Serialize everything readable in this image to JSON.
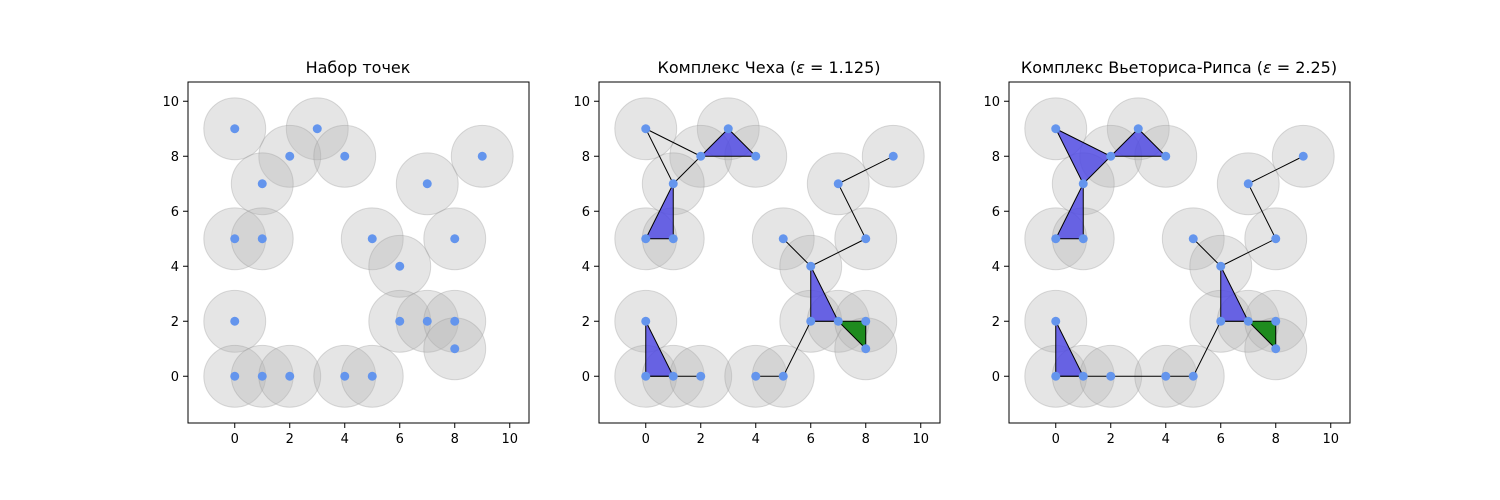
{
  "colors": {
    "point": "#6495ED",
    "disk": "#B4B4B4",
    "triangle": "#4B45E6",
    "tetrahedron": "#1E8B1E",
    "edge": "#000000"
  },
  "chart_data": [
    {
      "type": "scatter",
      "title": "Набор точек",
      "xlim": [
        -1.7,
        10.7
      ],
      "ylim": [
        -1.7,
        10.7
      ],
      "xticks": [
        "0",
        "2",
        "4",
        "6",
        "8",
        "10"
      ],
      "yticks": [
        "0",
        "2",
        "4",
        "6",
        "8",
        "10"
      ],
      "points": [
        [
          0,
          9
        ],
        [
          3,
          9
        ],
        [
          2,
          8
        ],
        [
          4,
          8
        ],
        [
          9,
          8
        ],
        [
          1,
          7
        ],
        [
          7,
          7
        ],
        [
          0,
          5
        ],
        [
          1,
          5
        ],
        [
          5,
          5
        ],
        [
          8,
          5
        ],
        [
          6,
          4
        ],
        [
          0,
          2
        ],
        [
          6,
          2
        ],
        [
          7,
          2
        ],
        [
          8,
          2
        ],
        [
          8,
          1
        ],
        [
          0,
          0
        ],
        [
          1,
          0
        ],
        [
          2,
          0
        ],
        [
          4,
          0
        ],
        [
          5,
          0
        ]
      ],
      "disk_radius": 1.125,
      "edges": [],
      "triangles": [],
      "tetrahedra": []
    },
    {
      "type": "scatter",
      "title_prefix": "Комплекс Чеха (",
      "title_symbol": "ε",
      "title_suffix": " = 1.125)",
      "xlim": [
        -1.7,
        10.7
      ],
      "ylim": [
        -1.7,
        10.7
      ],
      "xticks": [
        "0",
        "2",
        "4",
        "6",
        "8",
        "10"
      ],
      "yticks": [
        "0",
        "2",
        "4",
        "6",
        "8",
        "10"
      ],
      "points": [
        [
          0,
          9
        ],
        [
          3,
          9
        ],
        [
          2,
          8
        ],
        [
          4,
          8
        ],
        [
          9,
          8
        ],
        [
          1,
          7
        ],
        [
          7,
          7
        ],
        [
          0,
          5
        ],
        [
          1,
          5
        ],
        [
          5,
          5
        ],
        [
          8,
          5
        ],
        [
          6,
          4
        ],
        [
          0,
          2
        ],
        [
          6,
          2
        ],
        [
          7,
          2
        ],
        [
          8,
          2
        ],
        [
          8,
          1
        ],
        [
          0,
          0
        ],
        [
          1,
          0
        ],
        [
          2,
          0
        ],
        [
          4,
          0
        ],
        [
          5,
          0
        ]
      ],
      "disk_radius": 1.125,
      "edges": [
        [
          [
            0,
            9
          ],
          [
            2,
            8
          ]
        ],
        [
          [
            0,
            9
          ],
          [
            1,
            7
          ]
        ],
        [
          [
            1,
            7
          ],
          [
            2,
            8
          ]
        ],
        [
          [
            7,
            7
          ],
          [
            9,
            8
          ]
        ],
        [
          [
            7,
            7
          ],
          [
            8,
            5
          ]
        ],
        [
          [
            6,
            4
          ],
          [
            5,
            5
          ]
        ],
        [
          [
            6,
            4
          ],
          [
            8,
            5
          ]
        ],
        [
          [
            6,
            2
          ],
          [
            5,
            0
          ]
        ],
        [
          [
            0,
            0
          ],
          [
            1,
            0
          ]
        ],
        [
          [
            1,
            0
          ],
          [
            2,
            0
          ]
        ],
        [
          [
            4,
            0
          ],
          [
            5,
            0
          ]
        ]
      ],
      "triangles": [
        [
          [
            2,
            8
          ],
          [
            3,
            9
          ],
          [
            4,
            8
          ]
        ],
        [
          [
            0,
            5
          ],
          [
            1,
            7
          ],
          [
            1,
            5
          ]
        ],
        [
          [
            6,
            4
          ],
          [
            6,
            2
          ],
          [
            7,
            2
          ]
        ],
        [
          [
            0,
            2
          ],
          [
            0,
            0
          ],
          [
            1,
            0
          ]
        ]
      ],
      "tetrahedra": [
        [
          [
            6,
            2
          ],
          [
            8,
            2
          ],
          [
            8,
            1
          ],
          [
            7,
            2
          ]
        ]
      ]
    },
    {
      "type": "scatter",
      "title_prefix": "Комплекс Вьеториса-Рипса (",
      "title_symbol": "ε",
      "title_suffix": " = 2.25)",
      "xlim": [
        -1.7,
        10.7
      ],
      "ylim": [
        -1.7,
        10.7
      ],
      "xticks": [
        "0",
        "2",
        "4",
        "6",
        "8",
        "10"
      ],
      "yticks": [
        "0",
        "2",
        "4",
        "6",
        "8",
        "10"
      ],
      "points": [
        [
          0,
          9
        ],
        [
          3,
          9
        ],
        [
          2,
          8
        ],
        [
          4,
          8
        ],
        [
          9,
          8
        ],
        [
          1,
          7
        ],
        [
          7,
          7
        ],
        [
          0,
          5
        ],
        [
          1,
          5
        ],
        [
          5,
          5
        ],
        [
          8,
          5
        ],
        [
          6,
          4
        ],
        [
          0,
          2
        ],
        [
          6,
          2
        ],
        [
          7,
          2
        ],
        [
          8,
          2
        ],
        [
          8,
          1
        ],
        [
          0,
          0
        ],
        [
          1,
          0
        ],
        [
          2,
          0
        ],
        [
          4,
          0
        ],
        [
          5,
          0
        ]
      ],
      "disk_radius": 1.125,
      "edges": [
        [
          [
            7,
            7
          ],
          [
            9,
            8
          ]
        ],
        [
          [
            7,
            7
          ],
          [
            8,
            5
          ]
        ],
        [
          [
            6,
            4
          ],
          [
            5,
            5
          ]
        ],
        [
          [
            6,
            4
          ],
          [
            8,
            5
          ]
        ],
        [
          [
            6,
            2
          ],
          [
            5,
            0
          ]
        ],
        [
          [
            0,
            0
          ],
          [
            1,
            0
          ]
        ],
        [
          [
            1,
            0
          ],
          [
            2,
            0
          ]
        ],
        [
          [
            2,
            0
          ],
          [
            4,
            0
          ]
        ],
        [
          [
            4,
            0
          ],
          [
            5,
            0
          ]
        ]
      ],
      "triangles": [
        [
          [
            0,
            9
          ],
          [
            2,
            8
          ],
          [
            1,
            7
          ]
        ],
        [
          [
            2,
            8
          ],
          [
            3,
            9
          ],
          [
            4,
            8
          ]
        ],
        [
          [
            0,
            5
          ],
          [
            1,
            7
          ],
          [
            1,
            5
          ]
        ],
        [
          [
            6,
            4
          ],
          [
            6,
            2
          ],
          [
            7,
            2
          ]
        ],
        [
          [
            0,
            2
          ],
          [
            0,
            0
          ],
          [
            1,
            0
          ]
        ]
      ],
      "tetrahedra": [
        [
          [
            6,
            2
          ],
          [
            8,
            2
          ],
          [
            8,
            1
          ],
          [
            7,
            2
          ]
        ]
      ]
    }
  ]
}
